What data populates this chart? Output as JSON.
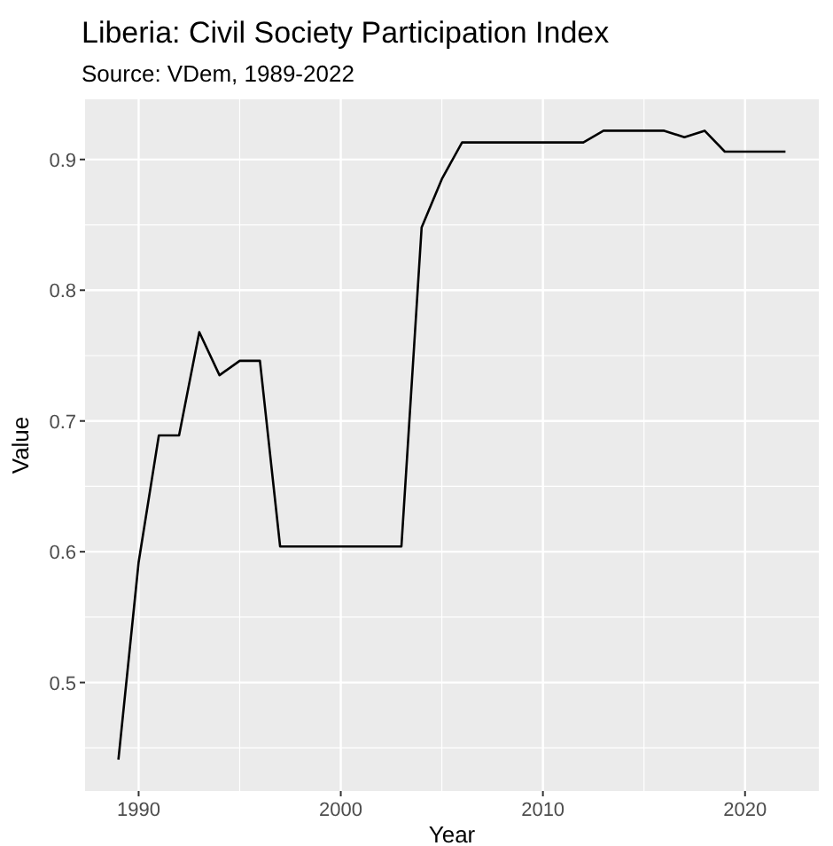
{
  "chart_data": {
    "type": "line",
    "title": "Liberia: Civil Society Participation Index",
    "subtitle": "Source: VDem, 1989-2022",
    "xlabel": "Year",
    "ylabel": "Value",
    "x": [
      1989,
      1990,
      1991,
      1992,
      1993,
      1994,
      1995,
      1996,
      1997,
      1998,
      1999,
      2000,
      2001,
      2002,
      2003,
      2004,
      2005,
      2006,
      2007,
      2008,
      2009,
      2010,
      2011,
      2012,
      2013,
      2014,
      2015,
      2016,
      2017,
      2018,
      2019,
      2020,
      2021,
      2022
    ],
    "series": [
      {
        "color": "#000000",
        "values": [
          0.441,
          0.592,
          0.689,
          0.689,
          0.768,
          0.735,
          0.746,
          0.746,
          0.604,
          0.604,
          0.604,
          0.604,
          0.604,
          0.604,
          0.604,
          0.848,
          0.885,
          0.913,
          0.913,
          0.913,
          0.913,
          0.913,
          0.913,
          0.913,
          0.922,
          0.922,
          0.922,
          0.922,
          0.917,
          0.922,
          0.906,
          0.906,
          0.906,
          0.906
        ]
      }
    ],
    "xlim": [
      1987.35,
      2023.65
    ],
    "ylim": [
      0.417,
      0.946
    ],
    "xticks": [
      1990,
      2000,
      2010,
      2020
    ],
    "yticks": [
      {
        "value": 0.5,
        "label": "0.5"
      },
      {
        "value": 0.6,
        "label": "0.6"
      },
      {
        "value": 0.7,
        "label": "0.7"
      },
      {
        "value": 0.8,
        "label": "0.8"
      },
      {
        "value": 0.9,
        "label": "0.9"
      }
    ],
    "grid": true
  }
}
